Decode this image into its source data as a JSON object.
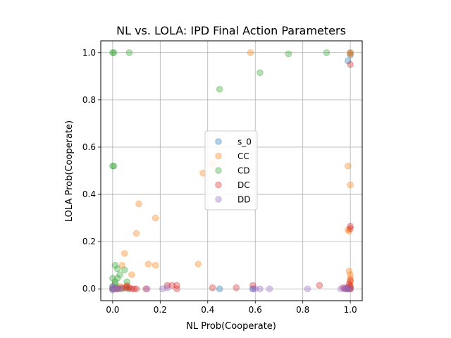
{
  "chart_data": {
    "type": "scatter",
    "title": "NL vs. LOLA: IPD Final Action Parameters",
    "xlabel": "NL Prob(Cooperate)",
    "ylabel": "LOLA Prob(Cooperate)",
    "xlim": [
      -0.05,
      1.05
    ],
    "ylim": [
      -0.05,
      1.05
    ],
    "xticks": [
      "0.0",
      "0.2",
      "0.4",
      "0.6",
      "0.8",
      "1.0"
    ],
    "yticks": [
      "0.0",
      "0.2",
      "0.4",
      "0.6",
      "0.8",
      "1.0"
    ],
    "grid": true,
    "legend_position": "center",
    "series": [
      {
        "name": "s_0",
        "color": "#1f77b4",
        "points": [
          [
            0.0,
            0.0
          ],
          [
            0.45,
            0.0
          ],
          [
            0.59,
            0.0
          ],
          [
            0.99,
            0.965
          ],
          [
            1.0,
            0.99
          ],
          [
            1.0,
            1.0
          ],
          [
            0.99,
            0.0
          ],
          [
            1.0,
            0.0
          ]
        ]
      },
      {
        "name": "CC",
        "color": "#ff7f0e",
        "points": [
          [
            0.0,
            0.0
          ],
          [
            0.01,
            0.0
          ],
          [
            0.02,
            0.0
          ],
          [
            0.03,
            0.01
          ],
          [
            0.04,
            0.1
          ],
          [
            0.05,
            0.15
          ],
          [
            0.08,
            0.06
          ],
          [
            0.1,
            0.235
          ],
          [
            0.11,
            0.36
          ],
          [
            0.15,
            0.105
          ],
          [
            0.18,
            0.1
          ],
          [
            0.18,
            0.3
          ],
          [
            0.36,
            0.105
          ],
          [
            0.38,
            0.49
          ],
          [
            0.42,
            0.53
          ],
          [
            0.58,
            1.0
          ],
          [
            0.99,
            0.52
          ],
          [
            0.99,
            0.25
          ],
          [
            0.995,
            0.245
          ],
          [
            1.0,
            0.44
          ],
          [
            1.0,
            1.0
          ],
          [
            1.0,
            0.995
          ],
          [
            0.995,
            0.075
          ],
          [
            1.0,
            0.06
          ],
          [
            1.0,
            0.045
          ],
          [
            1.0,
            0.03
          ],
          [
            1.0,
            0.015
          ],
          [
            1.0,
            0.005
          ],
          [
            0.99,
            0.0
          ],
          [
            0.06,
            0.015
          ]
        ]
      },
      {
        "name": "CD",
        "color": "#2ca02c",
        "points": [
          [
            0.0,
            1.0
          ],
          [
            0.005,
            1.0
          ],
          [
            0.0,
            0.52
          ],
          [
            0.005,
            0.52
          ],
          [
            0.07,
            1.0
          ],
          [
            0.45,
            0.845
          ],
          [
            0.62,
            0.915
          ],
          [
            0.74,
            0.995
          ],
          [
            0.9,
            1.0
          ],
          [
            0.01,
            0.1
          ],
          [
            0.02,
            0.085
          ],
          [
            0.05,
            0.08
          ],
          [
            0.03,
            0.06
          ],
          [
            0.0,
            0.045
          ],
          [
            0.02,
            0.045
          ],
          [
            0.01,
            0.03
          ],
          [
            0.06,
            0.03
          ],
          [
            0.0,
            0.01
          ],
          [
            0.02,
            0.005
          ],
          [
            0.04,
            0.0
          ],
          [
            0.065,
            0.0
          ],
          [
            0.0,
            0.0
          ],
          [
            0.01,
            0.02
          ]
        ]
      },
      {
        "name": "DC",
        "color": "#d62728",
        "points": [
          [
            1.0,
            0.95
          ],
          [
            1.0,
            0.265
          ],
          [
            1.0,
            0.255
          ],
          [
            0.02,
            0.0
          ],
          [
            0.04,
            0.005
          ],
          [
            0.06,
            0.01
          ],
          [
            0.07,
            0.005
          ],
          [
            0.08,
            0.0
          ],
          [
            0.09,
            0.0
          ],
          [
            0.1,
            0.0
          ],
          [
            0.14,
            0.0
          ],
          [
            0.23,
            0.015
          ],
          [
            0.25,
            0.015
          ],
          [
            0.27,
            0.0
          ],
          [
            0.27,
            0.015
          ],
          [
            0.42,
            0.005
          ],
          [
            0.52,
            0.005
          ],
          [
            0.59,
            0.015
          ],
          [
            0.87,
            0.015
          ],
          [
            0.98,
            0.0
          ],
          [
            0.99,
            0.005
          ],
          [
            1.0,
            0.0
          ],
          [
            1.0,
            0.01
          ],
          [
            0.995,
            0.02
          ],
          [
            1.0,
            0.035
          ],
          [
            0.97,
            0.005
          ],
          [
            0.055,
            0.005
          ]
        ]
      },
      {
        "name": "DD",
        "color": "#9467bd",
        "points": [
          [
            0.0,
            0.0
          ],
          [
            0.005,
            0.005
          ],
          [
            0.01,
            0.0
          ],
          [
            0.02,
            0.0
          ],
          [
            0.03,
            0.0
          ],
          [
            0.0,
            0.01
          ],
          [
            0.0,
            -0.005
          ],
          [
            0.145,
            0.0
          ],
          [
            0.21,
            0.0
          ],
          [
            0.23,
            0.005
          ],
          [
            0.59,
            0.0
          ],
          [
            0.6,
            0.0
          ],
          [
            0.62,
            0.0
          ],
          [
            0.66,
            0.0
          ],
          [
            0.82,
            0.0
          ],
          [
            0.96,
            0.0
          ],
          [
            0.975,
            0.0
          ],
          [
            0.98,
            0.005
          ],
          [
            0.99,
            0.0
          ],
          [
            1.0,
            0.0
          ],
          [
            0.985,
            0.0
          ]
        ]
      }
    ]
  }
}
